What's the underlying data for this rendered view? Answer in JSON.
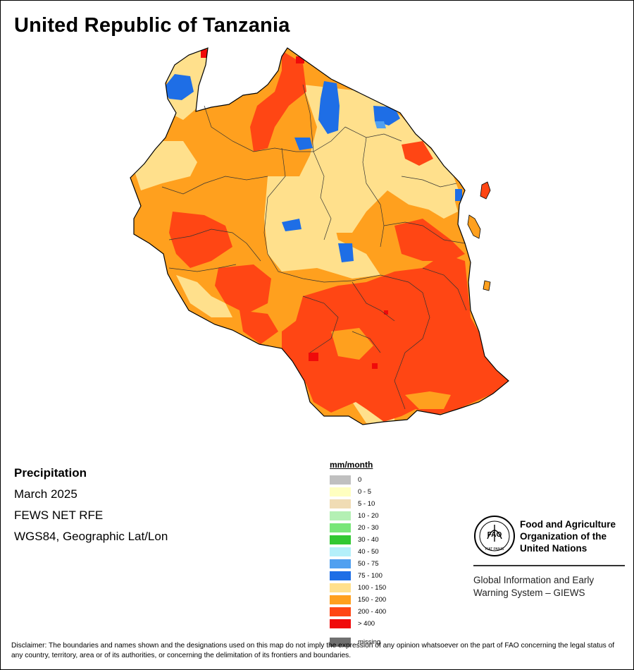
{
  "map": {
    "title": "United Republic of Tanzania",
    "colors": {
      "c0": "#c0c0c0",
      "c0_5": "#ffffc0",
      "c5_10": "#f0dcb4",
      "c10_20": "#b4f0b4",
      "c20_30": "#78e678",
      "c30_40": "#32c832",
      "c40_50": "#b4f0fa",
      "c50_75": "#50a0f0",
      "c75_100": "#1e6ee6",
      "c100_150": "#ffe08c",
      "c150_200": "#ffa01e",
      "c200_400": "#ff4614",
      "c400": "#f00a0a",
      "missing": "#707070"
    }
  },
  "info": {
    "variable": "Precipitation",
    "period": "March 2025",
    "source": "FEWS NET RFE",
    "projection": "WGS84, Geographic Lat/Lon"
  },
  "legend": {
    "title": "mm/month",
    "items": [
      {
        "label": "0",
        "color": "#c0c0c0"
      },
      {
        "label": "0 - 5",
        "color": "#ffffc0"
      },
      {
        "label": "5 - 10",
        "color": "#f0dcb4"
      },
      {
        "label": "10 - 20",
        "color": "#b4f0b4"
      },
      {
        "label": "20 - 30",
        "color": "#78e678"
      },
      {
        "label": "30 - 40",
        "color": "#32c832"
      },
      {
        "label": "40 - 50",
        "color": "#b4f0fa"
      },
      {
        "label": "50 - 75",
        "color": "#50a0f0"
      },
      {
        "label": "75 - 100",
        "color": "#1e6ee6"
      },
      {
        "label": "100 - 150",
        "color": "#ffe08c"
      },
      {
        "label": "150 - 200",
        "color": "#ffa01e"
      },
      {
        "label": "200 - 400",
        "color": "#ff4614"
      },
      {
        "label": "> 400",
        "color": "#f00a0a"
      },
      {
        "label": "missing",
        "color": "#707070"
      }
    ]
  },
  "organization": {
    "logo_text": "FAO",
    "logo_motto": "FIAT PANIS",
    "name_line1": "Food and Agriculture",
    "name_line2": "Organization of the",
    "name_line3": "United Nations",
    "system_line1": "Global Information and Early",
    "system_line2": "Warning System – GIEWS"
  },
  "disclaimer": "Disclaimer: The boundaries and names shown and the designations used on this map do not imply the expression of any opinion whatsoever on the part of FAO concerning the legal status of any country, territory, area or of its authorities, or concerning the delimitation of its frontiers and boundaries."
}
